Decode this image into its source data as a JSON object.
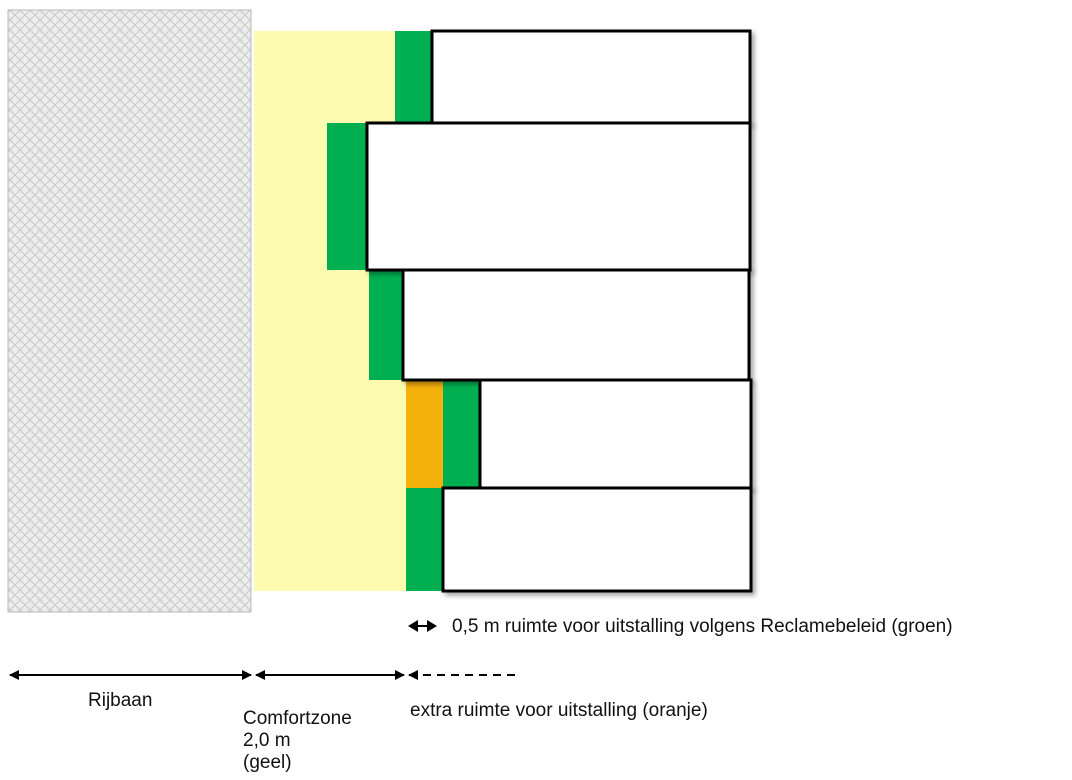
{
  "labels": {
    "legend_green": "0,5 m ruimte voor uitstalling volgens Reclamebeleid  (groen)",
    "rijbaan": "Rijbaan",
    "comfortzone_line1": "Comfortzone",
    "comfortzone_line2": "2,0 m",
    "comfortzone_line3": "(geel)",
    "extra_space": "extra ruimte voor uitstalling (oranje)"
  },
  "zones": [
    {
      "name": "Rijbaan",
      "color": "#e6e6e6",
      "pattern": "crosshatch"
    },
    {
      "name": "Comfortzone",
      "color": "#fdfbb0"
    },
    {
      "name": "Reclamebeleid uitstalling",
      "color": "#00b050"
    },
    {
      "name": "Extra uitstalling",
      "color": "#f5b10c"
    }
  ],
  "buildings_count": 5
}
